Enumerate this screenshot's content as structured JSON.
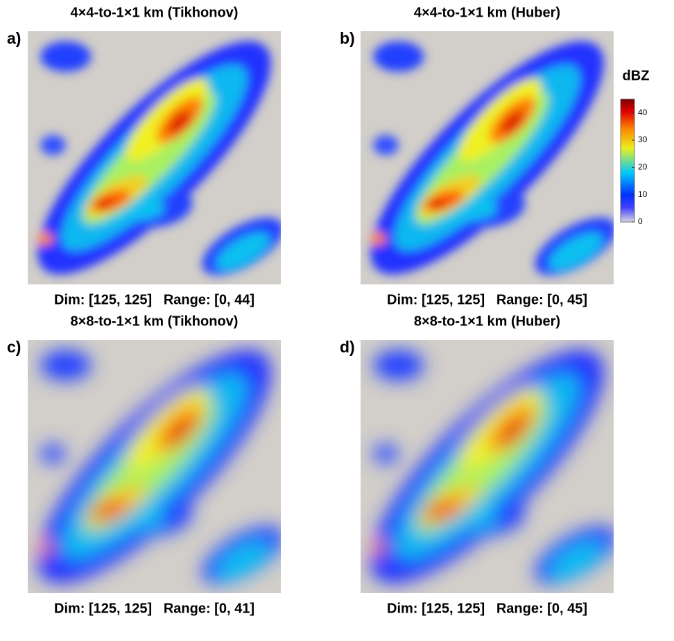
{
  "panels": [
    {
      "label": "a)",
      "title": "4×4-to-1×1 km  (Tikhonov)",
      "caption": "Dim: [125, 125]   Range: [0, 44]"
    },
    {
      "label": "b)",
      "title": "4×4-to-1×1 km  (Huber)",
      "caption": "Dim: [125, 125]   Range: [0, 45]"
    },
    {
      "label": "c)",
      "title": "8×8-to-1×1 km  (Tikhonov)",
      "caption": "Dim: [125, 125]   Range: [0, 41]"
    },
    {
      "label": "d)",
      "title": "8×8-to-1×1 km  (Huber)",
      "caption": "Dim: [125, 125]   Range: [0, 45]"
    }
  ],
  "colorbar": {
    "title": "dBZ",
    "lim": [
      0,
      45
    ],
    "ticks": [
      0,
      10,
      20,
      30,
      40
    ]
  }
}
